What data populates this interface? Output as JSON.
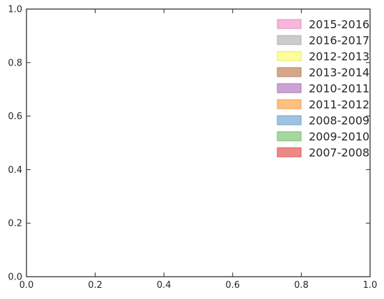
{
  "chart_data": {
    "type": "area",
    "title": "",
    "xlabel": "",
    "ylabel": "",
    "xlim": [
      0,
      1
    ],
    "ylim": [
      0,
      1
    ],
    "grid": false,
    "legend_position": "top-right",
    "x_ticks": [
      {
        "value": 0.0,
        "label": "0.0"
      },
      {
        "value": 0.2,
        "label": "0.2"
      },
      {
        "value": 0.4,
        "label": "0.4"
      },
      {
        "value": 0.6,
        "label": "0.6"
      },
      {
        "value": 0.8,
        "label": "0.8"
      },
      {
        "value": 1.0,
        "label": "1.0"
      }
    ],
    "y_ticks": [
      {
        "value": 0.0,
        "label": "0.0"
      },
      {
        "value": 0.2,
        "label": "0.2"
      },
      {
        "value": 0.4,
        "label": "0.4"
      },
      {
        "value": 0.6,
        "label": "0.6"
      },
      {
        "value": 0.8,
        "label": "0.8"
      },
      {
        "value": 1.0,
        "label": "1.0"
      }
    ],
    "series": [
      {
        "name": "2015-2016",
        "color": "#f7b6dc",
        "edge": "#e48ec4",
        "values": []
      },
      {
        "name": "2016-2017",
        "color": "#cccccc",
        "edge": "#b0b0b0",
        "values": []
      },
      {
        "name": "2012-2013",
        "color": "#ffff99",
        "edge": "#e6e673",
        "values": []
      },
      {
        "name": "2013-2014",
        "color": "#d4a78a",
        "edge": "#b98566",
        "values": []
      },
      {
        "name": "2010-2011",
        "color": "#cba3d4",
        "edge": "#aa7cb6",
        "values": []
      },
      {
        "name": "2011-2012",
        "color": "#ffbf80",
        "edge": "#f09c4c",
        "values": []
      },
      {
        "name": "2008-2009",
        "color": "#9ec4e2",
        "edge": "#6e9fcb",
        "values": []
      },
      {
        "name": "2009-2010",
        "color": "#a5d89f",
        "edge": "#76bb6e",
        "values": []
      },
      {
        "name": "2007-2008",
        "color": "#f08888",
        "edge": "#d45858",
        "values": []
      }
    ]
  }
}
